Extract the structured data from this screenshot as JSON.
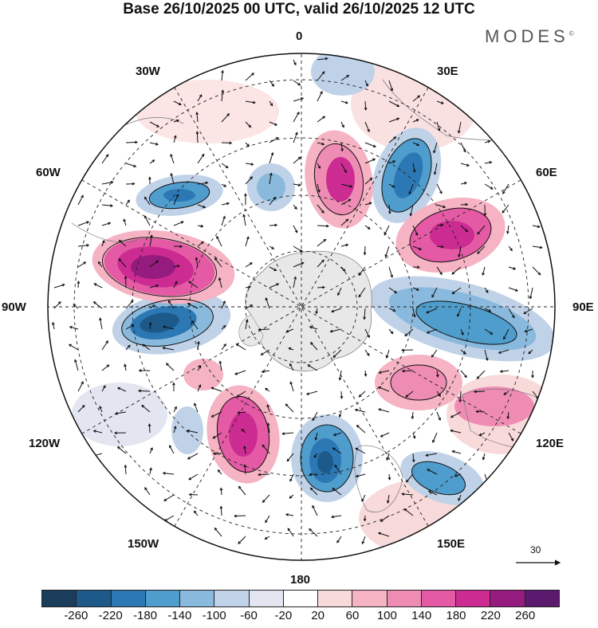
{
  "title": "Base 26/10/2025 00 UTC, valid 26/10/2025 12 UTC",
  "brand": "MODES",
  "brand_mark": "©",
  "longitude_labels": {
    "top": "0",
    "top_right": "30E",
    "right_upper": "60E",
    "right": "90E",
    "right_lower": "120E",
    "bottom_right": "150E",
    "bottom": "180",
    "bottom_left": "150W",
    "left_lower": "120W",
    "left": "90W",
    "left_upper": "60W",
    "top_left": "30W"
  },
  "reference_vector": {
    "value": "30",
    "icon": "arrow-right-icon"
  },
  "colorbar": {
    "colors": [
      "#1b3d5c",
      "#1d5a8a",
      "#2c78b4",
      "#4f9dcc",
      "#89b9dc",
      "#c0d2e8",
      "#e3e6f1",
      "#ffffff",
      "#f9dada",
      "#f5b3c3",
      "#ef8cb4",
      "#e55aa5",
      "#cc2b92",
      "#961b7e",
      "#5c1a6e"
    ],
    "ticks": [
      "-260",
      "-220",
      "-180",
      "-140",
      "-100",
      "-60",
      "-20",
      "20",
      "60",
      "100",
      "140",
      "180",
      "220",
      "260"
    ]
  }
}
